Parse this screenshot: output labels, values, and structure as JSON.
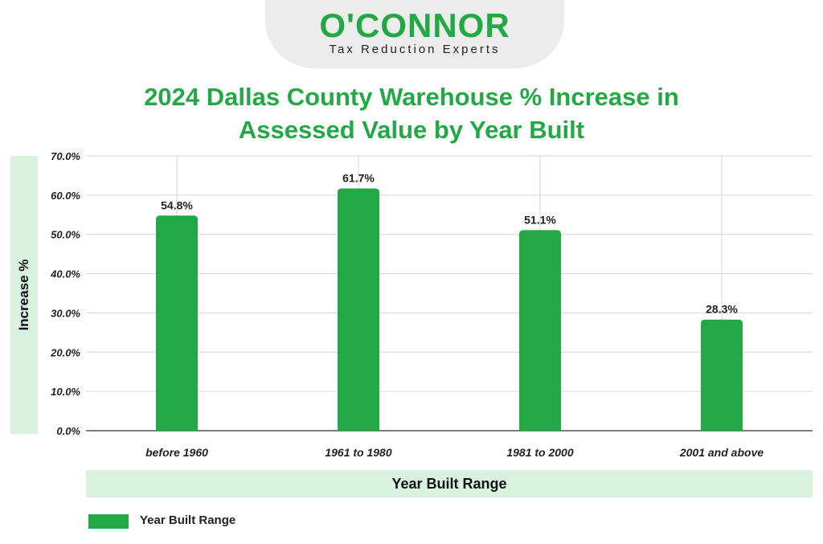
{
  "logo": {
    "name": "O'CONNOR",
    "tagline": "Tax Reduction Experts"
  },
  "colors": {
    "brand": "#22a845",
    "bar": "#22a845",
    "label_box": "#d9f1df"
  },
  "chart_data": {
    "type": "bar",
    "title": "2024 Dallas County Warehouse % Increase in Assessed Value by Year Built",
    "title_lines": [
      "2024 Dallas County Warehouse % Increase in",
      "Assessed Value by Year Built"
    ],
    "xlabel": "Year Built Range",
    "ylabel": "Increase %",
    "categories": [
      "before 1960",
      "1961 to 1980",
      "1981 to 2000",
      "2001 and above"
    ],
    "series": [
      {
        "name": "Year Built Range",
        "values": [
          54.8,
          61.7,
          51.1,
          28.3
        ]
      }
    ],
    "data_labels": [
      "54.8%",
      "61.7%",
      "51.1%",
      "28.3%"
    ],
    "ylim": [
      0,
      70
    ],
    "yticks": [
      0,
      10,
      20,
      30,
      40,
      50,
      60,
      70
    ],
    "ytick_labels": [
      "0.0%",
      "10.0%",
      "20.0%",
      "30.0%",
      "40.0%",
      "50.0%",
      "60.0%",
      "70.0%"
    ],
    "grid": true,
    "legend": "bottom-left"
  }
}
